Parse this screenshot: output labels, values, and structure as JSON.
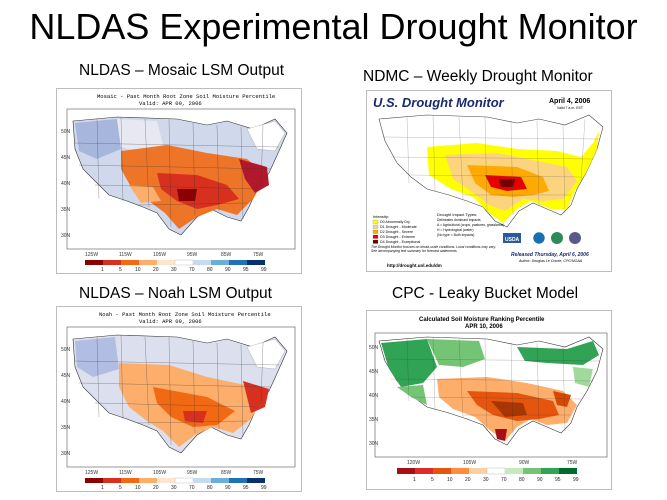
{
  "slide": {
    "title": "NLDAS Experimental Drought Monitor"
  },
  "panels": {
    "mosaic": {
      "label": "NLDAS – Mosaic LSM Output",
      "map_title": "Mosaic - Past Month Root Zone Soil Moisture Percentile",
      "map_valid": "Valid: APR 09, 2006",
      "colorbar_labels": [
        "1",
        "5",
        "10",
        "20",
        "30",
        "70",
        "80",
        "90",
        "95",
        "99"
      ]
    },
    "noah": {
      "label": "NLDAS – Noah LSM Output",
      "map_title": "Noah - Past Month Root Zone Soil Moisture Percentile",
      "map_valid": "Valid: APR 09, 2006",
      "colorbar_labels": [
        "1",
        "5",
        "10",
        "20",
        "30",
        "70",
        "80",
        "90",
        "95",
        "99"
      ]
    },
    "ndmc": {
      "label": "NDMC – Weekly Drought Monitor",
      "map_title": "U.S. Drought Monitor",
      "map_date": "April 4, 2006",
      "valid": "Valid 7 a.m. EST",
      "legend_header": "Intensity:",
      "legend_items": [
        {
          "label": "D0 Abnormally Dry",
          "color": "#ffff00"
        },
        {
          "label": "D1 Drought - Moderate",
          "color": "#fcd37f"
        },
        {
          "label": "D2 Drought - Severe",
          "color": "#ffaa00"
        },
        {
          "label": "D3 Drought - Extreme",
          "color": "#e60000"
        },
        {
          "label": "D4 Drought - Exceptional",
          "color": "#730000"
        }
      ],
      "impact_header": "Drought Impact Types:",
      "impact_items": [
        "Delineates dominant impacts",
        "A = Agricultural (crops, pastures, grasslands)",
        "H = Hydrological (water)",
        "(No type = Both impacts)"
      ],
      "note": "The Drought Monitor focuses on broad-scale conditions. Local conditions may vary. See accompanying text summary for forecast statements.",
      "released": "Released Thursday, April 6, 2006",
      "author": "Author: Douglas Le Comte, CPC/NOAA",
      "url": "http://drought.unl.edu/dm",
      "logo_usda": "USDA"
    },
    "cpc": {
      "label": "CPC - Leaky Bucket Model",
      "map_title": "Calculated Soil Moisture Ranking Percentile",
      "map_date": "APR 10, 2006",
      "colorbar_labels": [
        "1",
        "5",
        "10",
        "20",
        "30",
        "70",
        "80",
        "90",
        "95",
        "99"
      ]
    }
  },
  "colors": {
    "dry_dark": "#8b0000",
    "dry": "#d7301f",
    "dry_mid": "#f16913",
    "dry_light": "#fdae6b",
    "neutral": "#ffffff",
    "wet_light": "#c6dbef",
    "wet": "#6baed6",
    "wet_dark": "#2171b5",
    "cpc_wet": "#31a354"
  }
}
